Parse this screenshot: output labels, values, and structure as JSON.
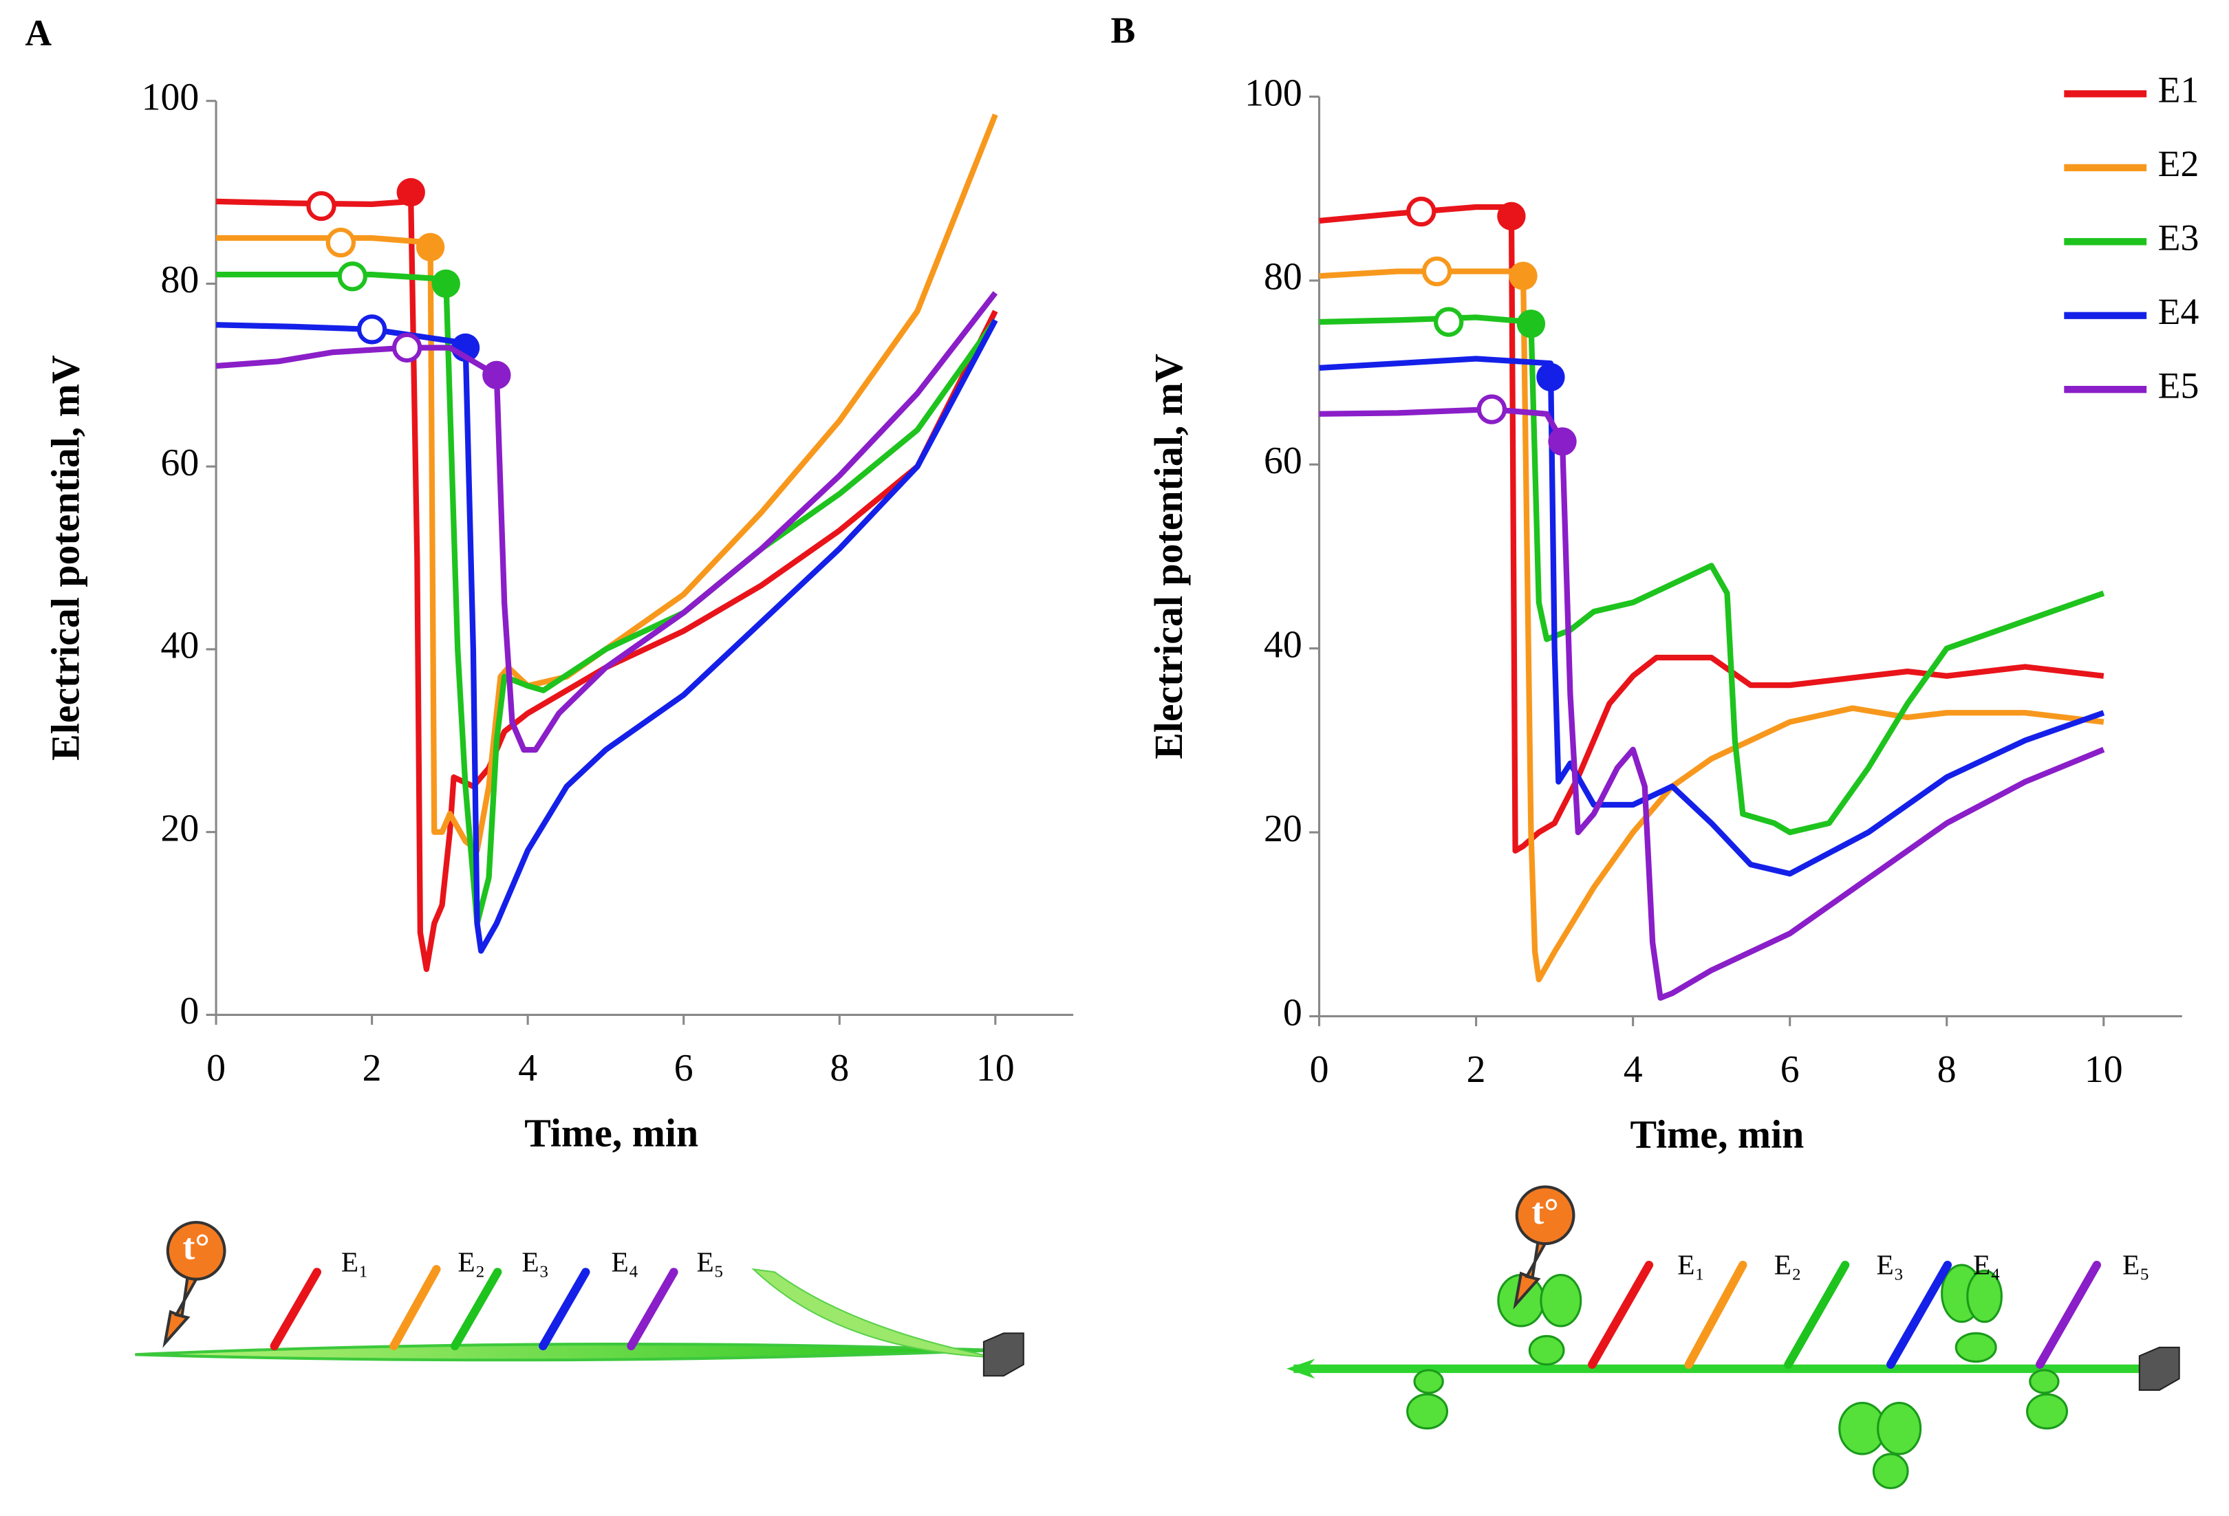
{
  "chart_data": [
    {
      "type": "line",
      "panel": "A",
      "xlabel": "Time, min",
      "ylabel": "Electrical potential, mV",
      "xlim": [
        0,
        11
      ],
      "ylim": [
        0,
        100
      ],
      "xticks": [
        0,
        2,
        4,
        6,
        8,
        10
      ],
      "yticks": [
        0,
        20,
        40,
        60,
        80,
        100
      ],
      "series": [
        {
          "name": "E1",
          "color": "#e8141a",
          "x": [
            0,
            1,
            2,
            2.5,
            2.58,
            2.62,
            2.7,
            2.8,
            2.9,
            3.0,
            3.05,
            3.3,
            3.5,
            3.7,
            4,
            5,
            6,
            7,
            8,
            9,
            10
          ],
          "values": [
            89,
            88.8,
            88.7,
            89,
            50,
            9,
            5,
            10,
            12,
            20,
            26,
            25,
            27,
            31,
            33,
            38,
            42,
            47,
            53,
            60,
            77
          ],
          "open_marker": {
            "x": 1.35,
            "y": 88.5
          },
          "filled_marker": {
            "x": 2.5,
            "y": 90
          }
        },
        {
          "name": "E2",
          "color": "#f7981d",
          "x": [
            0,
            1,
            2,
            2.75,
            2.8,
            2.9,
            3.0,
            3.2,
            3.35,
            3.5,
            3.65,
            3.75,
            4,
            4.5,
            5,
            6,
            7,
            8,
            9,
            10
          ],
          "values": [
            85,
            85,
            85,
            84.5,
            20,
            20,
            22,
            19,
            18,
            25,
            37,
            38,
            36,
            37,
            40,
            46,
            55,
            65,
            77,
            98.5
          ],
          "open_marker": {
            "x": 1.6,
            "y": 84.5
          },
          "filled_marker": {
            "x": 2.75,
            "y": 84
          }
        },
        {
          "name": "E3",
          "color": "#1ec31e",
          "x": [
            0,
            1,
            2,
            2.95,
            3.1,
            3.2,
            3.35,
            3.5,
            3.6,
            3.7,
            4,
            4.2,
            5,
            6,
            7,
            8,
            9,
            10
          ],
          "values": [
            81,
            81,
            81,
            80.5,
            40,
            25,
            10,
            15,
            30,
            37,
            36,
            35.5,
            40,
            44,
            51,
            57,
            64,
            76
          ],
          "open_marker": {
            "x": 1.75,
            "y": 80.8
          },
          "filled_marker": {
            "x": 2.95,
            "y": 80
          }
        },
        {
          "name": "E4",
          "color": "#1420e8",
          "x": [
            0,
            1,
            2,
            3.2,
            3.3,
            3.35,
            3.4,
            3.6,
            4,
            4.5,
            5,
            6,
            7,
            8,
            9,
            10
          ],
          "values": [
            75.5,
            75.3,
            75,
            73.5,
            40,
            10,
            7,
            10,
            18,
            25,
            29,
            35,
            43,
            51,
            60,
            76
          ],
          "open_marker": {
            "x": 2.0,
            "y": 75
          },
          "filled_marker": {
            "x": 3.2,
            "y": 73
          }
        },
        {
          "name": "E5",
          "color": "#8a1ec8",
          "x": [
            0,
            0.8,
            1.5,
            2.45,
            3,
            3.4,
            3.6,
            3.7,
            3.8,
            3.95,
            4.1,
            4.4,
            5,
            6,
            7,
            8,
            9,
            10
          ],
          "values": [
            71,
            71.5,
            72.5,
            73,
            73,
            71,
            70,
            45,
            32,
            29,
            29,
            33,
            38,
            44,
            51,
            59,
            68,
            79
          ],
          "open_marker": {
            "x": 2.45,
            "y": 73
          },
          "filled_marker": {
            "x": 3.6,
            "y": 70
          }
        }
      ],
      "diagram_labels": [
        "E₁",
        "E₂",
        "E₃",
        "E₄",
        "E₅"
      ],
      "stimulus": "t°"
    },
    {
      "type": "line",
      "panel": "B",
      "xlabel": "Time, min",
      "ylabel": "Electrical potential, mV",
      "xlim": [
        0,
        11
      ],
      "ylim": [
        0,
        100
      ],
      "xticks": [
        0,
        2,
        4,
        6,
        8,
        10
      ],
      "yticks": [
        0,
        20,
        40,
        60,
        80,
        100
      ],
      "legend": "upper right",
      "series": [
        {
          "name": "E1",
          "color": "#e8141a",
          "x": [
            0,
            1,
            2,
            2.45,
            2.5,
            2.6,
            2.8,
            3.0,
            3.3,
            3.7,
            4.0,
            4.3,
            5,
            5.5,
            6,
            7,
            7.5,
            8,
            9,
            10
          ],
          "values": [
            86.5,
            87.3,
            88,
            88,
            18,
            18.5,
            20,
            21,
            26,
            34,
            37,
            39,
            39,
            36,
            36,
            37,
            37.5,
            37,
            38,
            37
          ],
          "open_marker": {
            "x": 1.3,
            "y": 87.5
          },
          "filled_marker": {
            "x": 2.45,
            "y": 87
          }
        },
        {
          "name": "E2",
          "color": "#f7981d",
          "x": [
            0,
            1,
            2,
            2.6,
            2.7,
            2.75,
            2.8,
            3.0,
            3.5,
            4,
            4.5,
            5,
            5.5,
            6,
            6.8,
            7.5,
            8,
            9,
            10
          ],
          "values": [
            80.5,
            81,
            81,
            81,
            20,
            7,
            4,
            7,
            14,
            20,
            25,
            28,
            30,
            32,
            33.5,
            32.5,
            33,
            33,
            32
          ],
          "open_marker": {
            "x": 1.5,
            "y": 81
          },
          "filled_marker": {
            "x": 2.6,
            "y": 80.5
          }
        },
        {
          "name": "E3",
          "color": "#1ec31e",
          "x": [
            0,
            1,
            2,
            2.7,
            2.8,
            2.9,
            3.2,
            3.5,
            4,
            4.5,
            5,
            5.2,
            5.3,
            5.4,
            5.8,
            6,
            6.5,
            7,
            7.5,
            8,
            9,
            10
          ],
          "values": [
            75.5,
            75.7,
            76,
            75.5,
            45,
            41,
            42,
            44,
            45,
            47,
            49,
            46,
            30,
            22,
            21,
            20,
            21,
            27,
            34,
            40,
            43,
            46
          ],
          "open_marker": {
            "x": 1.65,
            "y": 75.5
          },
          "filled_marker": {
            "x": 2.7,
            "y": 75.3
          }
        },
        {
          "name": "E4",
          "color": "#1420e8",
          "x": [
            0,
            1,
            2,
            2.95,
            3.0,
            3.05,
            3.2,
            3.5,
            4,
            4.5,
            5,
            5.5,
            6,
            7,
            8,
            9,
            10
          ],
          "values": [
            70.5,
            71,
            71.5,
            71,
            40,
            25.5,
            27.5,
            23,
            23,
            25,
            21,
            16.5,
            15.5,
            20,
            26,
            30,
            33
          ],
          "filled_marker": {
            "x": 2.95,
            "y": 69.5
          }
        },
        {
          "name": "E5",
          "color": "#8a1ec8",
          "x": [
            0,
            1,
            2.2,
            2.9,
            3.1,
            3.2,
            3.3,
            3.5,
            3.8,
            4,
            4.15,
            4.25,
            4.35,
            4.5,
            5,
            6,
            7,
            8,
            9,
            10
          ],
          "values": [
            65.5,
            65.6,
            66,
            65.5,
            62.5,
            35,
            20,
            22,
            27,
            29,
            25,
            8,
            2,
            2.5,
            5,
            9,
            15,
            21,
            25.5,
            29
          ],
          "open_marker": {
            "x": 2.2,
            "y": 66
          },
          "filled_marker": {
            "x": 3.1,
            "y": 62.5
          }
        }
      ],
      "diagram_labels": [
        "E₁",
        "E₂",
        "E₃",
        "E₄",
        "E₅"
      ],
      "stimulus": "t°"
    }
  ]
}
